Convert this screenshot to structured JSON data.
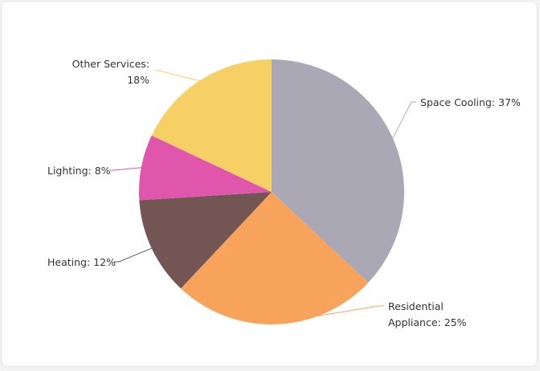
{
  "chart_data": {
    "type": "pie",
    "title": "",
    "start_angle_deg": 0,
    "direction": "clockwise",
    "legend": "none",
    "slices": [
      {
        "name": "Space Cooling",
        "value": 37,
        "color": "#a9a8b4",
        "label_lines": [
          "Space Cooling: 37%"
        ]
      },
      {
        "name": "Residential Appliance",
        "value": 25,
        "color": "#f7a35c",
        "label_lines": [
          "Residential",
          "Appliance: 25%"
        ]
      },
      {
        "name": "Heating",
        "value": 12,
        "color": "#735654",
        "label_lines": [
          "Heating: 12%"
        ]
      },
      {
        "name": "Lighting",
        "value": 8,
        "color": "#e056ac",
        "label_lines": [
          "Lighting: 8%"
        ]
      },
      {
        "name": "Other Services",
        "value": 18,
        "color": "#f7d065",
        "label_lines": [
          "Other Services:",
          "18%"
        ]
      }
    ]
  }
}
